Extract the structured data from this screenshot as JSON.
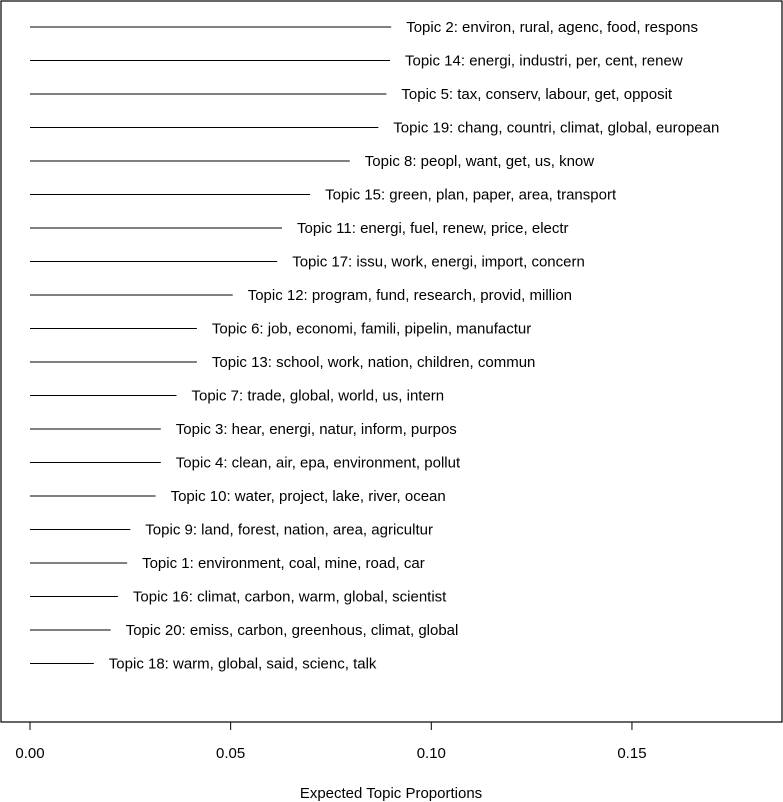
{
  "chart_data": {
    "type": "bar",
    "orientation": "horizontal",
    "xlabel": "Expected Topic Proportions",
    "ylabel": "",
    "title": "",
    "xlim": [
      0,
      0.18
    ],
    "xticks": [
      0.0,
      0.05,
      0.1,
      0.15
    ],
    "xtick_labels": [
      "0.00",
      "0.05",
      "0.10",
      "0.15"
    ],
    "grid": false,
    "legend": "none",
    "colors": {
      "bar": "#000000",
      "frame": "#000000",
      "text": "#000000",
      "background": "#ffffff"
    },
    "topics": [
      {
        "label": "Topic 2: environ, rural, agenc, food, respons",
        "value": 0.09
      },
      {
        "label": "Topic 14: energi, industri, per, cent, renew",
        "value": 0.0897
      },
      {
        "label": "Topic 5: tax, conserv, labour, get, opposit",
        "value": 0.0888
      },
      {
        "label": "Topic 19: chang, countri, climat, global, european",
        "value": 0.0868
      },
      {
        "label": "Topic 8: peopl, want, get, us, know",
        "value": 0.0797
      },
      {
        "label": "Topic 15: green, plan, paper, area, transport",
        "value": 0.0698
      },
      {
        "label": "Topic 11: energi, fuel, renew, price, electr",
        "value": 0.0628
      },
      {
        "label": "Topic 17: issu, work, energi, import, concern",
        "value": 0.0616
      },
      {
        "label": "Topic 12: program, fund, research, provid, million",
        "value": 0.0505
      },
      {
        "label": "Topic 6: job, economi, famili, pipelin, manufactur",
        "value": 0.0416
      },
      {
        "label": "Topic 13: school, work, nation, children, commun",
        "value": 0.0416
      },
      {
        "label": "Topic 7: trade, global, world, us, intern",
        "value": 0.0365
      },
      {
        "label": "Topic 3: hear, energi, natur, inform, purpos",
        "value": 0.0326
      },
      {
        "label": "Topic 4: clean, air, epa, environment, pollut",
        "value": 0.0326
      },
      {
        "label": "Topic 10: water, project, lake, river, ocean",
        "value": 0.0313
      },
      {
        "label": "Topic 9: land, forest, nation, area, agricultur",
        "value": 0.025
      },
      {
        "label": "Topic 1: environment, coal, mine, road, car",
        "value": 0.0242
      },
      {
        "label": "Topic 16: climat, carbon, warm, global, scientist",
        "value": 0.0219
      },
      {
        "label": "Topic 20: emiss, carbon, greenhous, climat, global",
        "value": 0.0201
      },
      {
        "label": "Topic 18: warm, global, said, scienc, talk",
        "value": 0.0159
      }
    ]
  }
}
